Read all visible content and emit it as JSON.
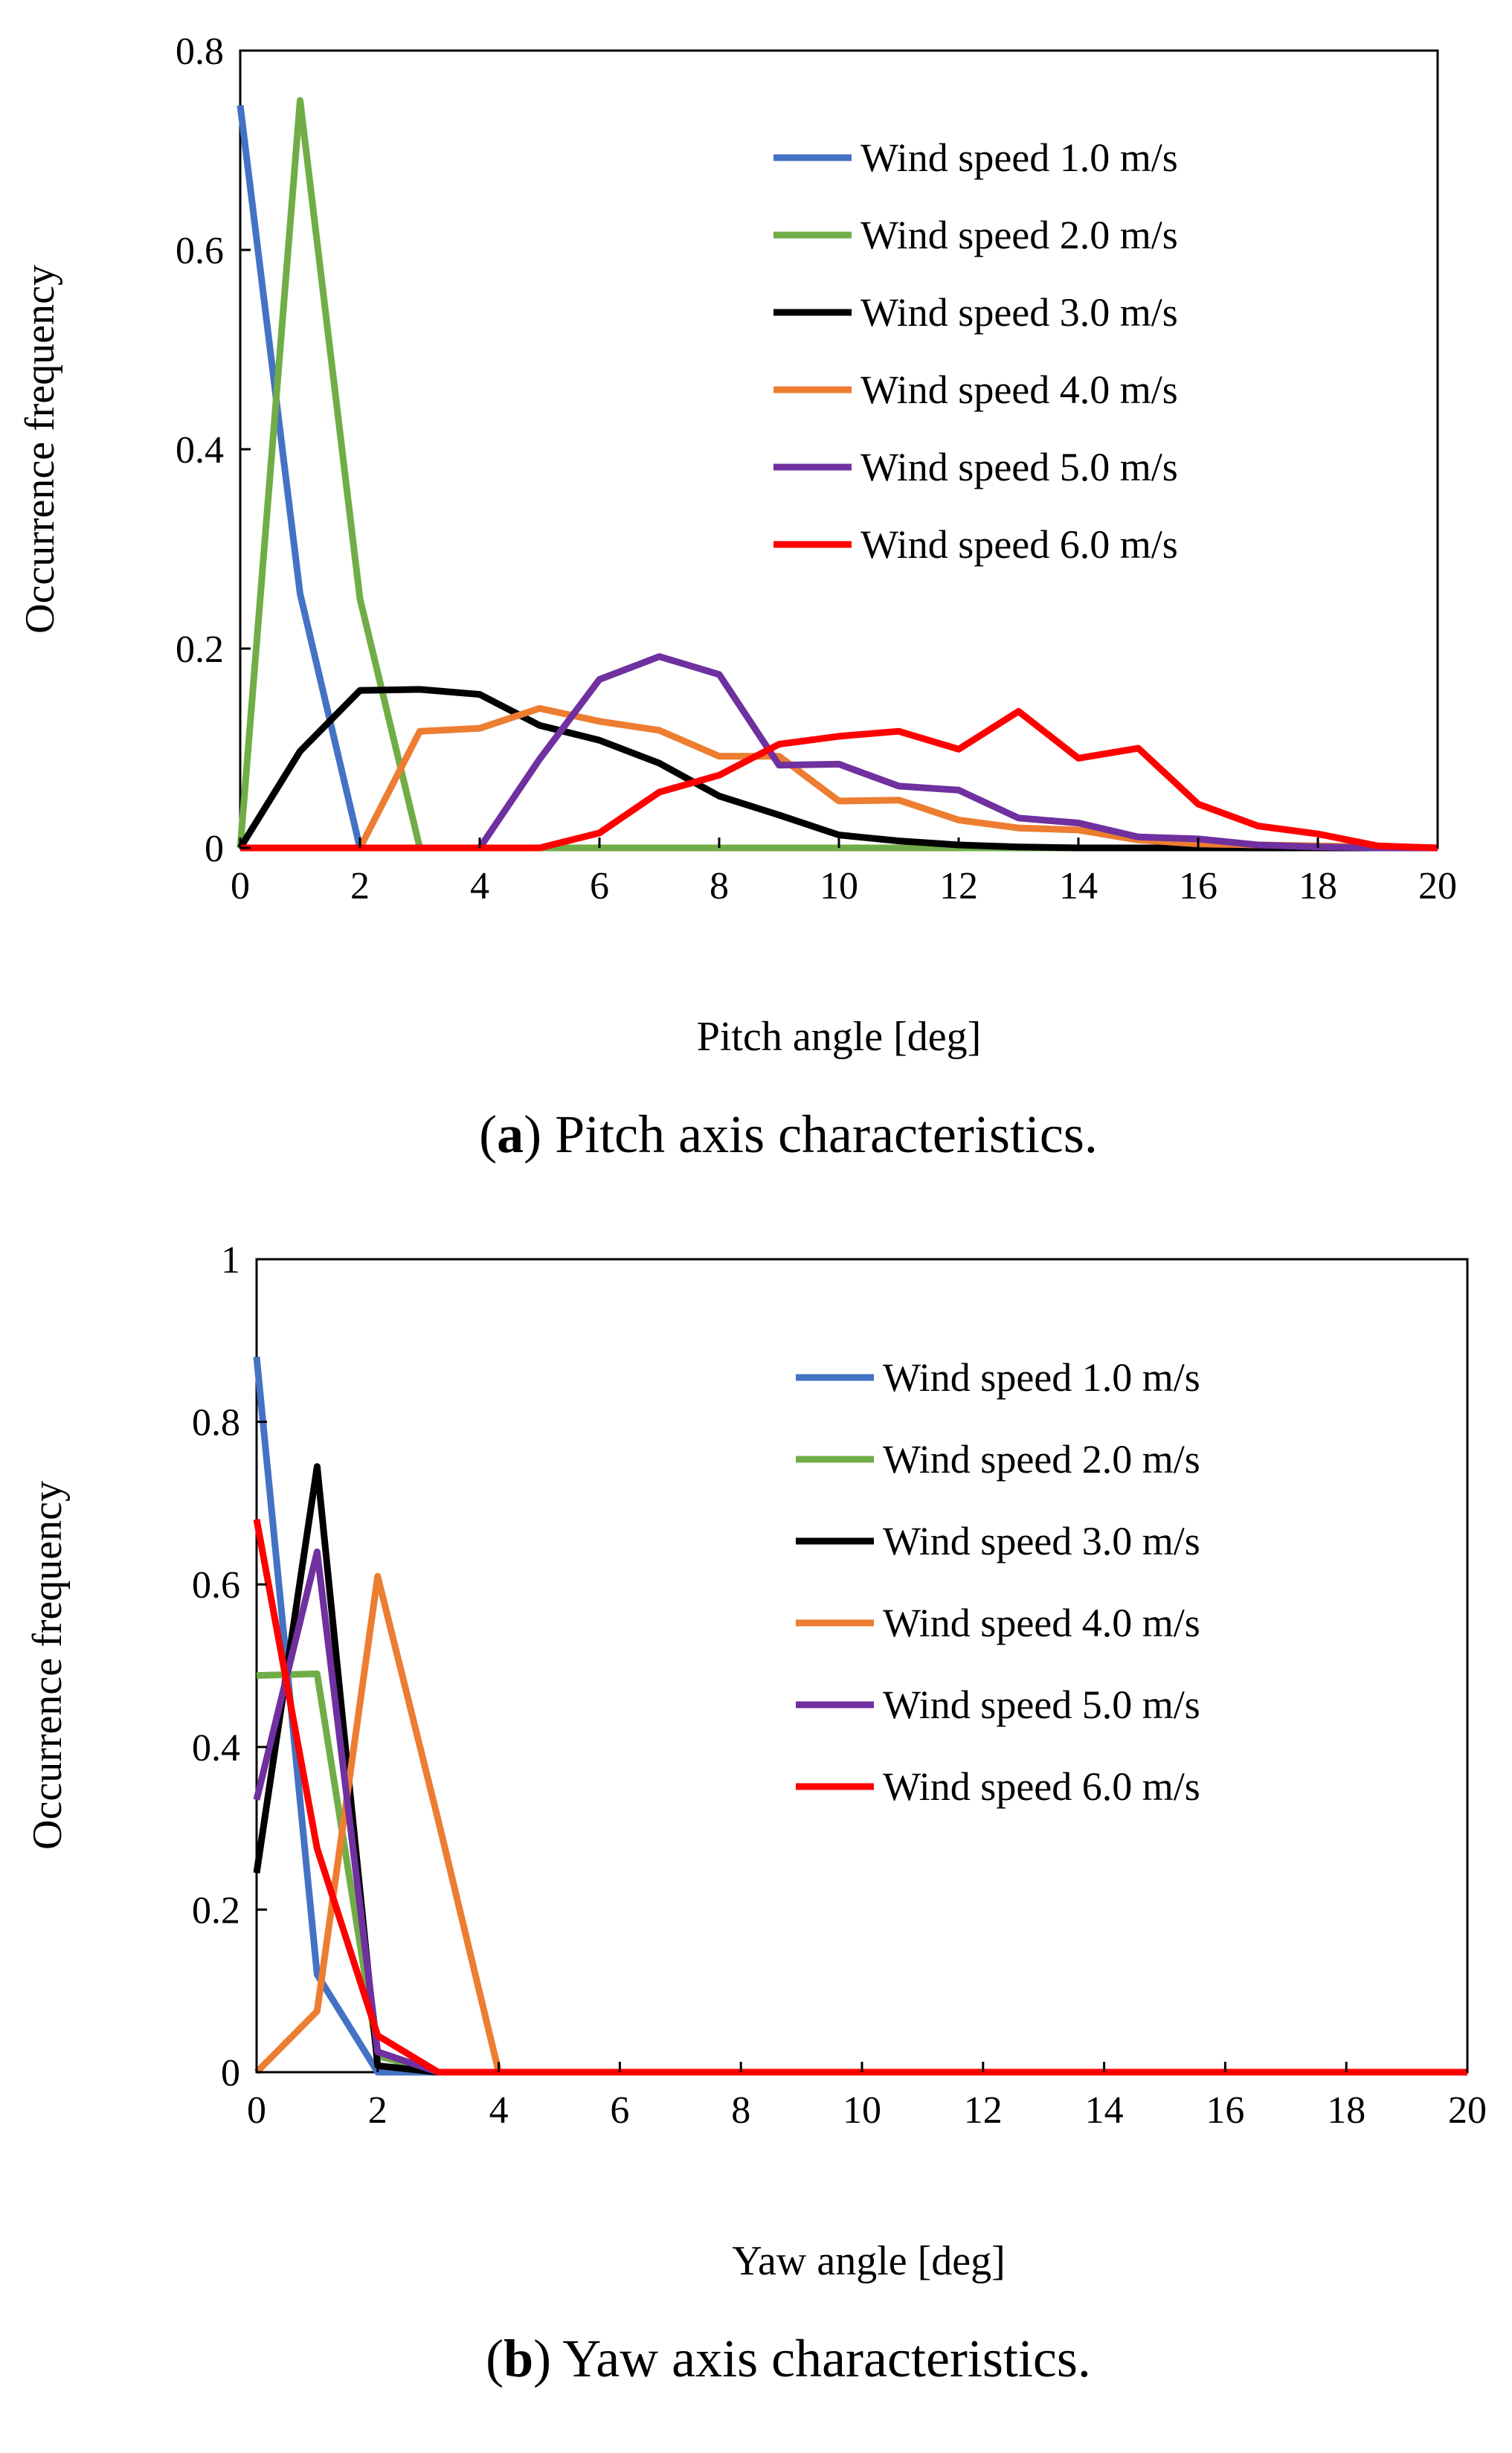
{
  "chart_data": [
    {
      "type": "line",
      "panel_label": "a",
      "caption": "Pitch axis characteristics.",
      "xlabel": "Pitch angle [deg]",
      "ylabel": "Occurrence frequency",
      "xlim": [
        0,
        20
      ],
      "ylim": [
        0,
        0.8
      ],
      "xticks": [
        0,
        2,
        4,
        6,
        8,
        10,
        12,
        14,
        16,
        18,
        20
      ],
      "yticks": [
        0,
        0.2,
        0.4,
        0.6,
        0.8
      ],
      "ytick_labels": [
        "0",
        "0.2",
        "0.4",
        "0.6",
        "0.8"
      ],
      "grid": false,
      "legend_position": "top-right",
      "x": [
        0,
        1,
        2,
        3,
        4,
        5,
        6,
        7,
        8,
        9,
        10,
        11,
        12,
        13,
        14,
        15,
        16,
        17,
        18,
        19,
        20
      ],
      "series": [
        {
          "name": "Wind speed 1.0 m/s",
          "color": "#4472C4",
          "values": [
            0.745,
            0.255,
            0,
            0,
            0,
            0,
            0,
            0,
            0,
            0,
            0,
            0,
            0,
            0,
            0,
            0,
            0,
            0,
            0,
            0,
            0
          ]
        },
        {
          "name": "Wind speed 2.0 m/s",
          "color": "#70AD47",
          "values": [
            0,
            0.75,
            0.25,
            0,
            0,
            0,
            0,
            0,
            0,
            0,
            0,
            0,
            0,
            0,
            0,
            0,
            0,
            0,
            0,
            0,
            0
          ]
        },
        {
          "name": "Wind speed 3.0 m/s",
          "color": "#000000",
          "values": [
            0,
            0.097,
            0.158,
            0.159,
            0.154,
            0.123,
            0.108,
            0.085,
            0.052,
            0.033,
            0.013,
            0.007,
            0.003,
            0.001,
            0,
            0,
            0,
            0,
            0,
            0,
            0
          ]
        },
        {
          "name": "Wind speed 4.0 m/s",
          "color": "#ED7D31",
          "values": [
            0,
            0,
            0,
            0.117,
            0.12,
            0.14,
            0.127,
            0.118,
            0.092,
            0.092,
            0.047,
            0.048,
            0.028,
            0.02,
            0.018,
            0.008,
            0.004,
            0.003,
            0.002,
            0.001,
            0
          ]
        },
        {
          "name": "Wind speed 5.0 m/s",
          "color": "#7030A0",
          "values": [
            0,
            0,
            0,
            0,
            0,
            0.089,
            0.169,
            0.192,
            0.174,
            0.083,
            0.084,
            0.062,
            0.058,
            0.03,
            0.025,
            0.011,
            0.009,
            0.003,
            0.001,
            0,
            0
          ]
        },
        {
          "name": "Wind speed 6.0 m/s",
          "color": "#FF0000",
          "values": [
            0,
            0,
            0,
            0,
            0,
            0,
            0.015,
            0.056,
            0.073,
            0.104,
            0.112,
            0.117,
            0.099,
            0.137,
            0.09,
            0.1,
            0.044,
            0.022,
            0.014,
            0.002,
            0
          ]
        }
      ]
    },
    {
      "type": "line",
      "panel_label": "b",
      "caption": "Yaw axis characteristics.",
      "xlabel": "Yaw angle [deg]",
      "ylabel": "Occurrence frequency",
      "xlim": [
        0,
        20
      ],
      "ylim": [
        0,
        1
      ],
      "xticks": [
        0,
        2,
        4,
        6,
        8,
        10,
        12,
        14,
        16,
        18,
        20
      ],
      "yticks": [
        0,
        0.2,
        0.4,
        0.6,
        0.8,
        1
      ],
      "ytick_labels": [
        "0",
        "0.2",
        "0.4",
        "0.6",
        "0.8",
        "1"
      ],
      "grid": false,
      "legend_position": "top-right",
      "x": [
        0,
        1,
        2,
        3,
        4,
        5,
        6,
        7,
        8,
        9,
        10,
        11,
        12,
        13,
        14,
        15,
        16,
        17,
        18,
        19,
        20
      ],
      "series": [
        {
          "name": "Wind speed 1.0 m/s",
          "color": "#4472C4",
          "values": [
            0.88,
            0.12,
            0,
            0,
            0,
            0,
            0,
            0,
            0,
            0,
            0,
            0,
            0,
            0,
            0,
            0,
            0,
            0,
            0,
            0,
            0
          ]
        },
        {
          "name": "Wind speed 2.0 m/s",
          "color": "#70AD47",
          "values": [
            0.488,
            0.49,
            0.02,
            0,
            0,
            0,
            0,
            0,
            0,
            0,
            0,
            0,
            0,
            0,
            0,
            0,
            0,
            0,
            0,
            0,
            0
          ]
        },
        {
          "name": "Wind speed 3.0 m/s",
          "color": "#000000",
          "values": [
            0.245,
            0.745,
            0.008,
            0,
            0,
            0,
            0,
            0,
            0,
            0,
            0,
            0,
            0,
            0,
            0,
            0,
            0,
            0,
            0,
            0,
            0
          ]
        },
        {
          "name": "Wind speed 4.0 m/s",
          "color": "#ED7D31",
          "values": [
            0,
            0.075,
            0.61,
            0.31,
            0,
            0,
            0,
            0,
            0,
            0,
            0,
            0,
            0,
            0,
            0,
            0,
            0,
            0,
            0,
            0,
            0
          ]
        },
        {
          "name": "Wind speed 5.0 m/s",
          "color": "#7030A0",
          "values": [
            0.335,
            0.64,
            0.025,
            0,
            0,
            0,
            0,
            0,
            0,
            0,
            0,
            0,
            0,
            0,
            0,
            0,
            0,
            0,
            0,
            0,
            0
          ]
        },
        {
          "name": "Wind speed 6.0 m/s",
          "color": "#FF0000",
          "values": [
            0.68,
            0.275,
            0.045,
            0,
            0,
            0,
            0,
            0,
            0,
            0,
            0,
            0,
            0,
            0,
            0,
            0,
            0,
            0,
            0,
            0,
            0
          ]
        }
      ]
    }
  ]
}
